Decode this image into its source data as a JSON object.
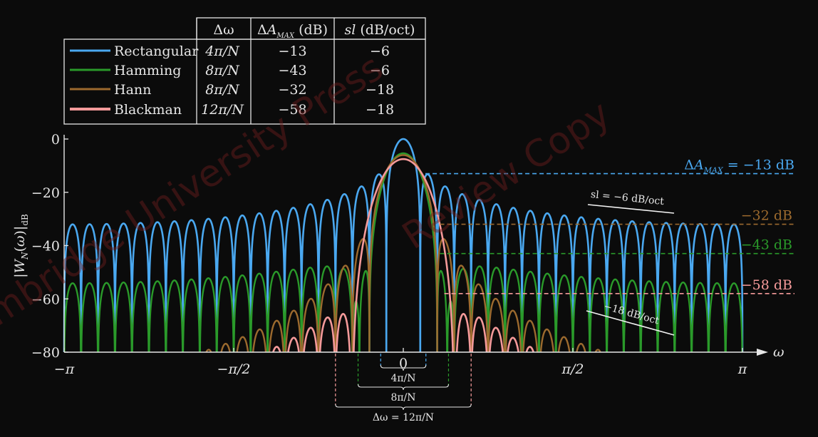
{
  "chart_data": {
    "type": "line",
    "title": "",
    "xlabel": "ω",
    "ylabel": "|W_N(ω)|_dB",
    "xlim": [
      -3.1416,
      3.1416
    ],
    "ylim": [
      -80,
      0
    ],
    "x_tick_values": [
      -3.1416,
      -1.5708,
      0,
      1.5708,
      3.1416
    ],
    "x_tick_labels": [
      "−π",
      "−π/2",
      "0",
      "π/2",
      "π"
    ],
    "y_tick_values": [
      0,
      -20,
      -40,
      -60,
      -80
    ],
    "y_tick_labels": [
      "0",
      "−20",
      "−40",
      "−60",
      "−80"
    ],
    "N": 40,
    "series": [
      {
        "name": "Rectangular",
        "color": "#4aa8f0",
        "mainlobe_width": "4π/N",
        "sidelobe_dB": -13,
        "rolloff": "−6",
        "mainlobe_half_width_rad": 0.2094
      },
      {
        "name": "Hamming",
        "color": "#2a9a2a",
        "mainlobe_width": "8π/N",
        "sidelobe_dB": -43,
        "rolloff": "−6",
        "mainlobe_half_width_rad": 0.4189
      },
      {
        "name": "Hann",
        "color": "#9c6a2e",
        "mainlobe_width": "8π/N",
        "sidelobe_dB": -32,
        "rolloff": "−18",
        "mainlobe_half_width_rad": 0.4189
      },
      {
        "name": "Blackman",
        "color": "#f59a9a",
        "mainlobe_width": "12π/N",
        "sidelobe_dB": -58,
        "rolloff": "−18",
        "mainlobe_half_width_rad": 0.6283
      }
    ],
    "legend": {
      "position": "top-left",
      "headers": [
        "Δω",
        "ΔA_MAX (dB)",
        "sl (dB/oct)"
      ]
    },
    "level_annotations": [
      {
        "value": -13,
        "label": "ΔA_MAX = −13 dB",
        "color": "#4aa8f0"
      },
      {
        "value": -32,
        "label": "−32 dB",
        "color": "#9c6a2e"
      },
      {
        "value": -43,
        "label": "−43 dB",
        "color": "#2a9a2a"
      },
      {
        "value": -58,
        "label": "−58 dB",
        "color": "#f59a9a"
      }
    ],
    "slope_annotations": [
      {
        "label": "sl = −6 dB/oct"
      },
      {
        "label": "−18 dB/oct"
      }
    ],
    "brace_annotations": [
      {
        "label": "4π/N"
      },
      {
        "label": "8π/N"
      },
      {
        "label": "Δω = 12π/N"
      }
    ]
  },
  "watermark": "Cambridge University Press - Review Copy"
}
